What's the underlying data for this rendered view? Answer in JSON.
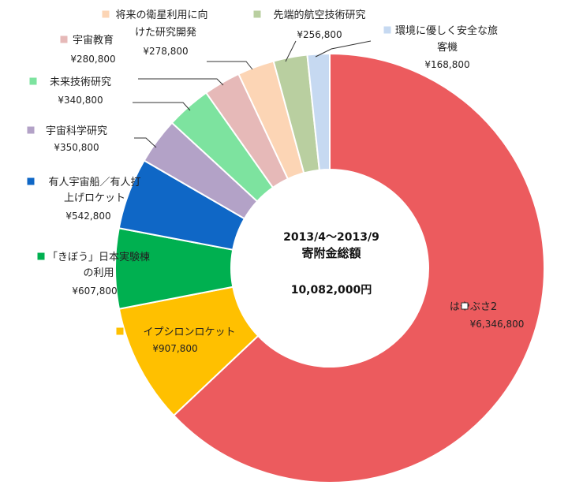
{
  "chart_data": {
    "type": "pie",
    "donut": true,
    "center_text": {
      "period": "2013/4～2013/9",
      "label": "寄附金総額",
      "total": "10,082,000円"
    },
    "slices": [
      {
        "name": "はやぶさ2",
        "value": 6346800,
        "value_label": "¥6,346,800",
        "color": "#EC5B5E"
      },
      {
        "name": "イプシロンロケット",
        "value": 907800,
        "value_label": "¥907,800",
        "color": "#FFC000"
      },
      {
        "name": "「きぼう」日本実験棟の利用",
        "value": 607800,
        "value_label": "¥607,800",
        "color": "#00B050"
      },
      {
        "name": "有人宇宙船／有人打上げロケット",
        "value": 542800,
        "value_label": "¥542,800",
        "color": "#0F67C6"
      },
      {
        "name": "宇宙科学研究",
        "value": 350800,
        "value_label": "¥350,800",
        "color": "#B3A2C7"
      },
      {
        "name": "未来技術研究",
        "value": 340800,
        "value_label": "¥340,800",
        "color": "#7DE39F"
      },
      {
        "name": "宇宙教育",
        "value": 280800,
        "value_label": "¥280,800",
        "color": "#E6B9B8"
      },
      {
        "name": "将来の衛星利用に向けた研究開発",
        "value": 278800,
        "value_label": "¥278,800",
        "color": "#FCD5B5"
      },
      {
        "name": "先端的航空技術研究",
        "value": 256800,
        "value_label": "¥256,800",
        "color": "#B9CFA0"
      },
      {
        "name": "環境に優しく安全な旅客機",
        "value": 168800,
        "value_label": "¥168,800",
        "color": "#C6D9F1"
      }
    ]
  }
}
